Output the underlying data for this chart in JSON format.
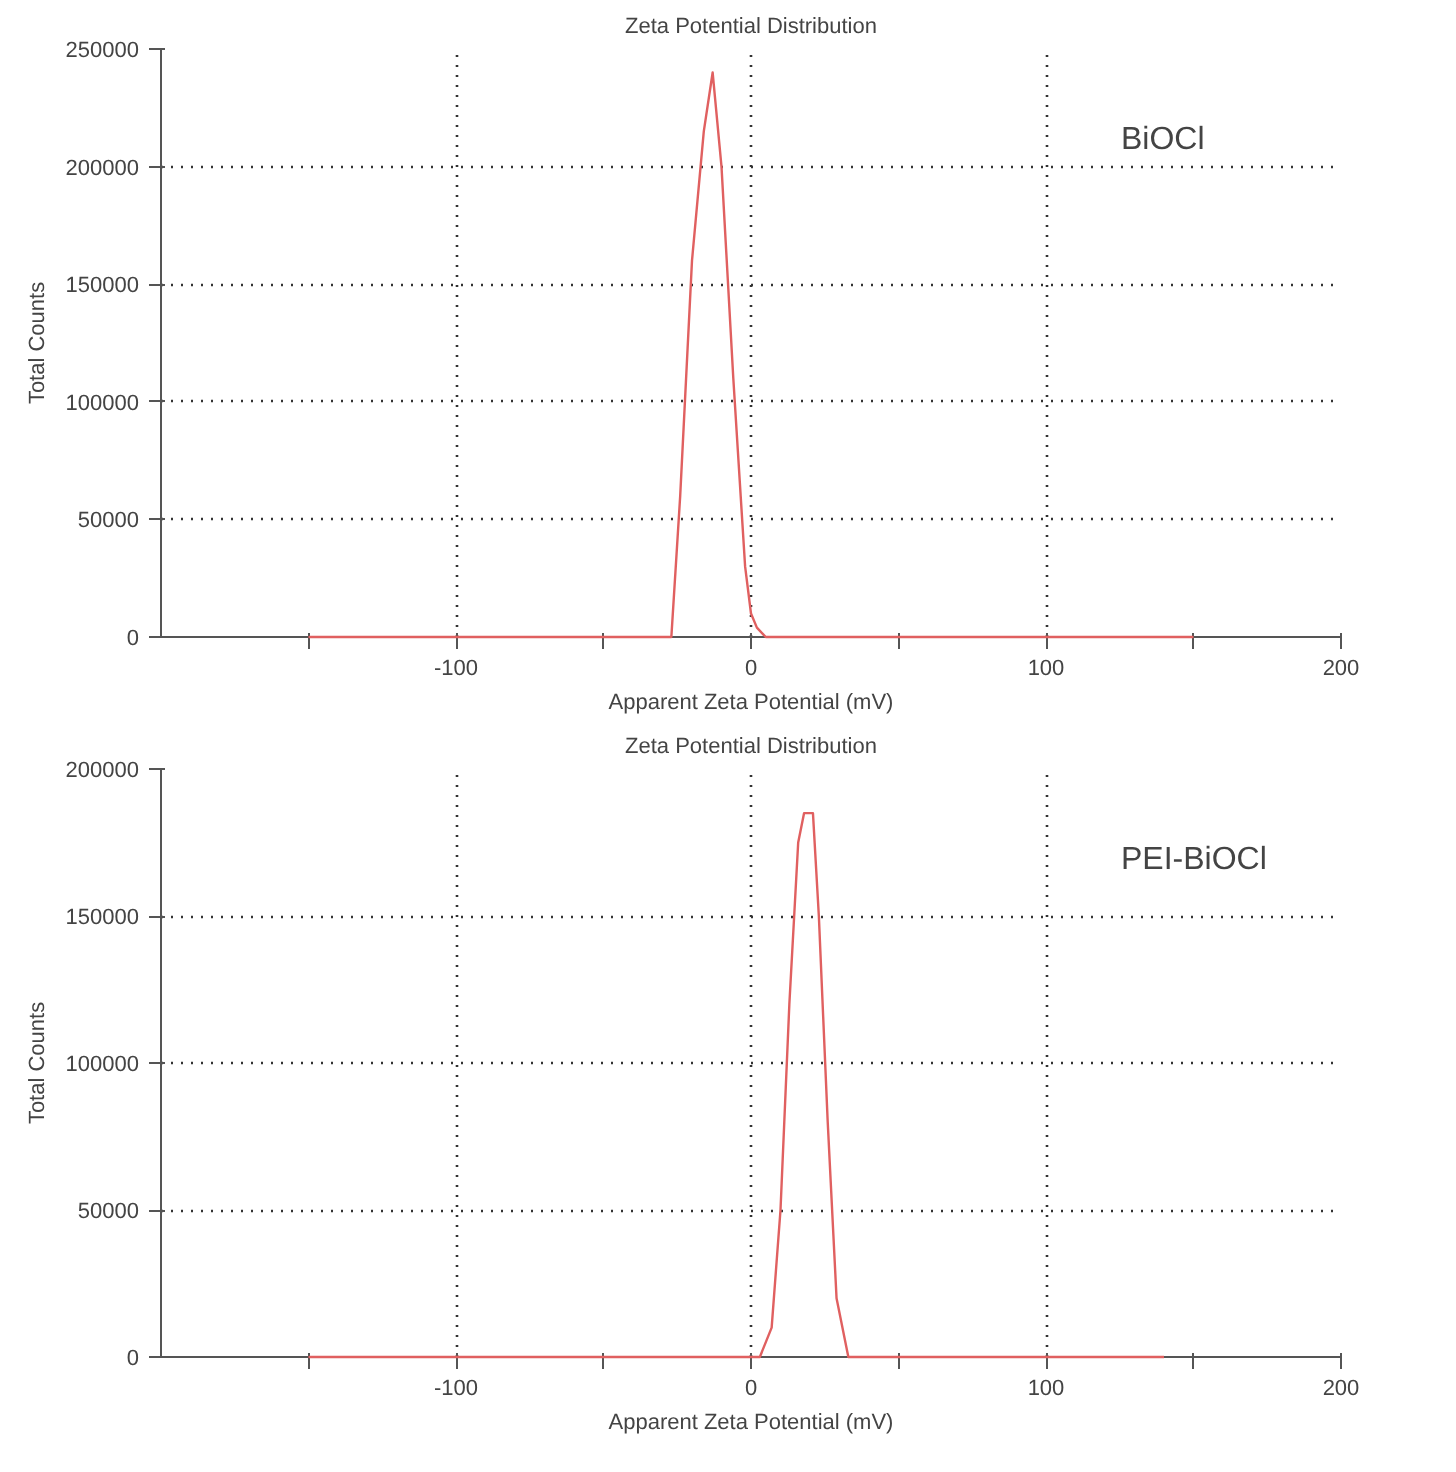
{
  "chart_data": [
    {
      "type": "line",
      "title": "Zeta Potential Distribution",
      "xlabel": "Apparent Zeta Potential (mV)",
      "ylabel": "Total Counts",
      "annotations": [
        "BiOCl"
      ],
      "x": [
        -150,
        -27,
        -24,
        -20,
        -16,
        -13,
        -10,
        -6,
        -2,
        0,
        2,
        5,
        150
      ],
      "series": [
        {
          "color": "#e06060",
          "values": [
            0,
            0,
            60000,
            160000,
            215000,
            240000,
            200000,
            110000,
            30000,
            10000,
            4000,
            0,
            0
          ]
        }
      ],
      "xlim": [
        -200,
        200
      ],
      "ylim": [
        0,
        250000
      ],
      "xticks": [
        {
          "value": -150,
          "label": null
        },
        -100,
        {
          "value": -50,
          "label": null
        },
        0,
        {
          "value": 50,
          "label": null
        },
        100,
        {
          "value": 150,
          "label": null
        },
        200
      ],
      "yticks": [
        0,
        50000,
        100000,
        150000,
        200000,
        250000
      ],
      "grid": true,
      "line_style": "solid"
    },
    {
      "type": "line",
      "title": "Zeta Potential Distribution",
      "xlabel": "Apparent Zeta Potential (mV)",
      "ylabel": "Total Counts",
      "annotations": [
        "PEI-BiOCl"
      ],
      "x": [
        -150,
        3,
        7,
        10,
        13,
        16,
        18,
        21,
        23,
        26,
        29,
        33,
        140
      ],
      "series": [
        {
          "color": "#e06060",
          "values": [
            0,
            0,
            10000,
            50000,
            120000,
            175000,
            185000,
            185000,
            150000,
            80000,
            20000,
            0,
            0
          ]
        }
      ],
      "xlim": [
        -200,
        200
      ],
      "ylim": [
        0,
        200000
      ],
      "xticks": [
        {
          "value": -150,
          "label": null
        },
        -100,
        {
          "value": -50,
          "label": null
        },
        0,
        {
          "value": 50,
          "label": null
        },
        100,
        {
          "value": 150,
          "label": null
        },
        200
      ],
      "yticks": [
        0,
        50000,
        100000,
        150000,
        200000
      ],
      "grid": true,
      "line_style": "solid"
    }
  ]
}
